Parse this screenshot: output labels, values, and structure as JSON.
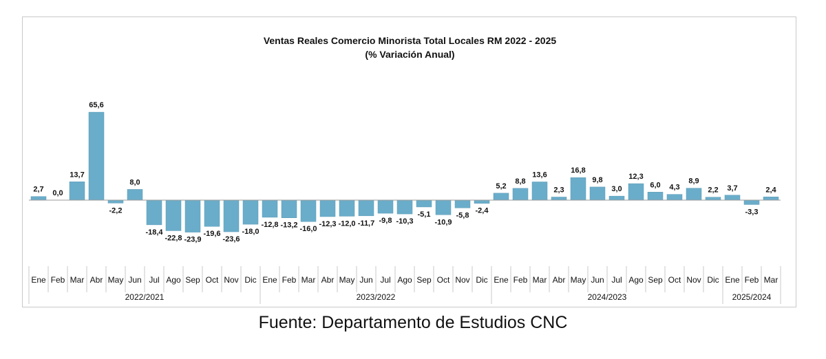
{
  "chart_data": {
    "type": "bar",
    "title": "Ventas Reales Comercio Minorista  Total Locales RM 2022 - 2025",
    "subtitle": "(% Variación Anual)",
    "bar_color": "#6aadca",
    "legend": "none",
    "grid": false,
    "categories": [
      "Ene",
      "Feb",
      "Mar",
      "Abr",
      "May",
      "Jun",
      "Jul",
      "Ago",
      "Sep",
      "Oct",
      "Nov",
      "Dic",
      "Ene",
      "Feb",
      "Mar",
      "Abr",
      "May",
      "Jun",
      "Jul",
      "Ago",
      "Sep",
      "Oct",
      "Nov",
      "Dic",
      "Ene",
      "Feb",
      "Mar",
      "Abr",
      "May",
      "Jun",
      "Jul",
      "Ago",
      "Sep",
      "Oct",
      "Nov",
      "Dic",
      "Ene",
      "Feb",
      "Mar"
    ],
    "values": [
      2.7,
      0.0,
      13.7,
      65.6,
      -2.2,
      8.0,
      -18.4,
      -22.8,
      -23.9,
      -19.6,
      -23.6,
      -18.0,
      -12.8,
      -13.2,
      -16.0,
      -12.3,
      -12.0,
      -11.7,
      -9.8,
      -10.3,
      -5.1,
      -10.9,
      -5.8,
      -2.4,
      5.2,
      8.8,
      13.6,
      2.3,
      16.8,
      9.8,
      3.0,
      12.3,
      6.0,
      4.3,
      8.9,
      2.2,
      3.7,
      -3.3,
      2.4
    ],
    "value_labels": [
      "2,7",
      "0,0",
      "13,7",
      "65,6",
      "-2,2",
      "8,0",
      "-18,4",
      "-22,8",
      "-23,9",
      "-19,6",
      "-23,6",
      "-18,0",
      "-12,8",
      "-13,2",
      "-16,0",
      "-12,3",
      "-12,0",
      "-11,7",
      "-9,8",
      "-10,3",
      "-5,1",
      "-10,9",
      "-5,8",
      "-2,4",
      "5,2",
      "8,8",
      "13,6",
      "2,3",
      "16,8",
      "9,8",
      "3,0",
      "12,3",
      "6,0",
      "4,3",
      "8,9",
      "2,2",
      "3,7",
      "-3,3",
      "2,4"
    ],
    "groups": [
      {
        "label": "2022/2021",
        "count": 12
      },
      {
        "label": "2023/2022",
        "count": 12
      },
      {
        "label": "2024/2023",
        "count": 12
      },
      {
        "label": "2025/2024",
        "count": 3
      }
    ],
    "ylim": [
      -50,
      70
    ]
  },
  "source_note": "Fuente: Departamento de Estudios CNC"
}
